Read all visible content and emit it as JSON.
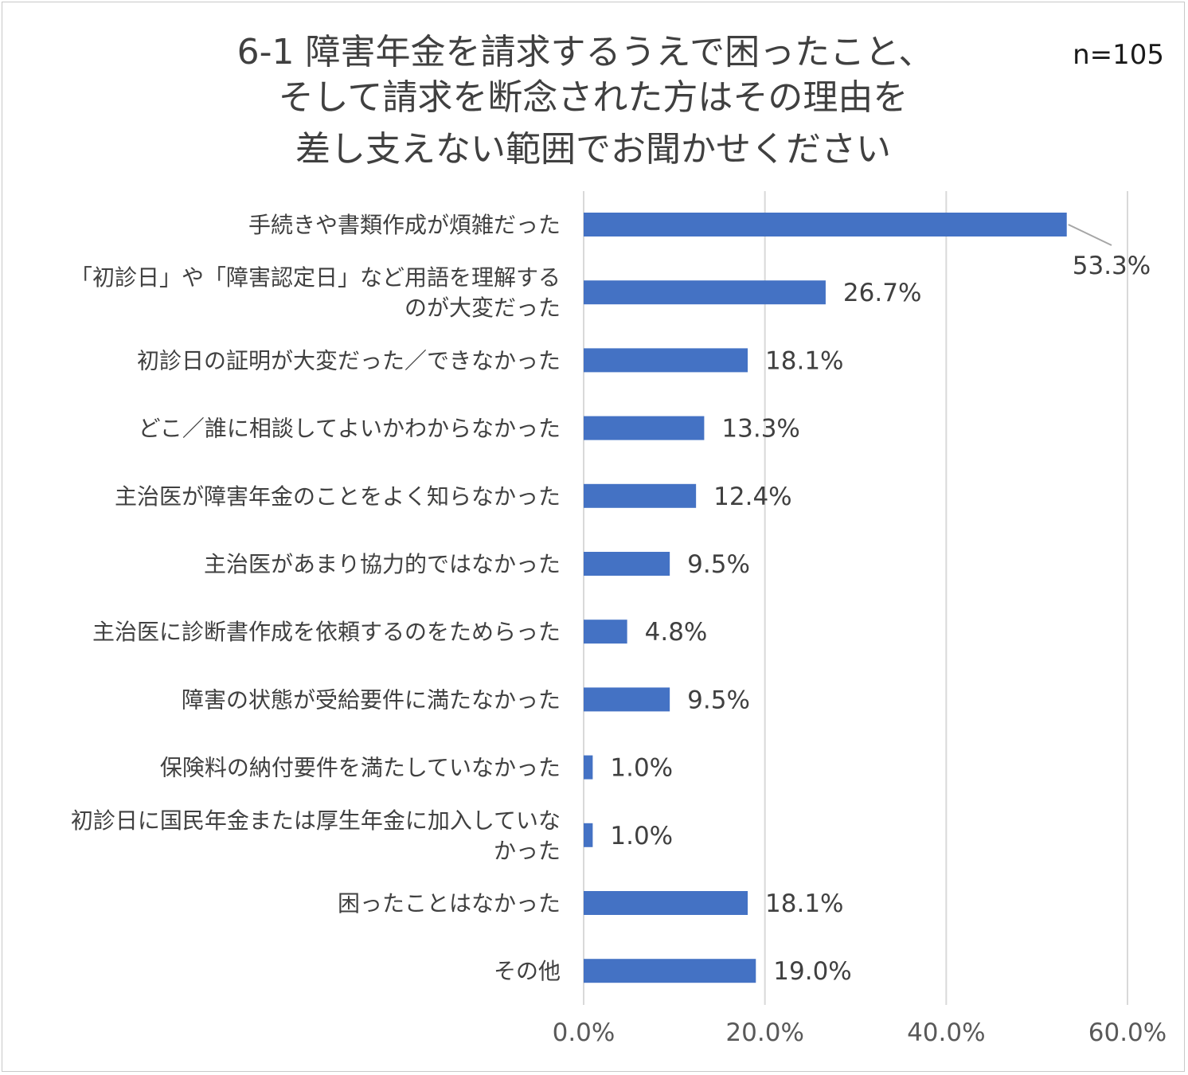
{
  "chart_data": {
    "type": "bar",
    "orientation": "horizontal",
    "title_lines": [
      "6-1 障害年金を請求するうえで困ったこと、",
      "そして請求を断念された方はその理由を",
      "差し支えない範囲でお聞かせください"
    ],
    "sample_size": "n=105",
    "categories": [
      [
        "手続きや書類作成が煩雑だった"
      ],
      [
        "「初診日」や「障害認定日」など用語を理解する",
        "のが大変だった"
      ],
      [
        "初診日の証明が大変だった／できなかった"
      ],
      [
        "どこ／誰に相談してよいかわからなかった"
      ],
      [
        "主治医が障害年金のことをよく知らなかった"
      ],
      [
        "主治医があまり協力的ではなかった"
      ],
      [
        "主治医に診断書作成を依頼するのをためらった"
      ],
      [
        "障害の状態が受給要件に満たなかった"
      ],
      [
        "保険料の納付要件を満たしていなかった"
      ],
      [
        "初診日に国民年金または厚生年金に加入していな",
        "かった"
      ],
      [
        "困ったことはなかった"
      ],
      [
        "その他"
      ]
    ],
    "values": [
      53.3,
      26.7,
      18.1,
      13.3,
      12.4,
      9.5,
      4.8,
      9.5,
      1.0,
      1.0,
      18.1,
      19.0
    ],
    "value_labels": [
      "53.3%",
      "26.7%",
      "18.1%",
      "13.3%",
      "12.4%",
      "9.5%",
      "4.8%",
      "9.5%",
      "1.0%",
      "1.0%",
      "18.1%",
      "19.0%"
    ],
    "x_ticks": [
      0,
      20,
      40,
      60
    ],
    "x_tick_labels": [
      "0.0%",
      "20.0%",
      "40.0%",
      "60.0%"
    ],
    "xlim": [
      0,
      60
    ],
    "xlabel": "",
    "ylabel": "",
    "grid": true,
    "colors": {
      "bar": "#4472c4",
      "grid": "#d9d9d9",
      "leader": "#a6a6a6"
    }
  }
}
